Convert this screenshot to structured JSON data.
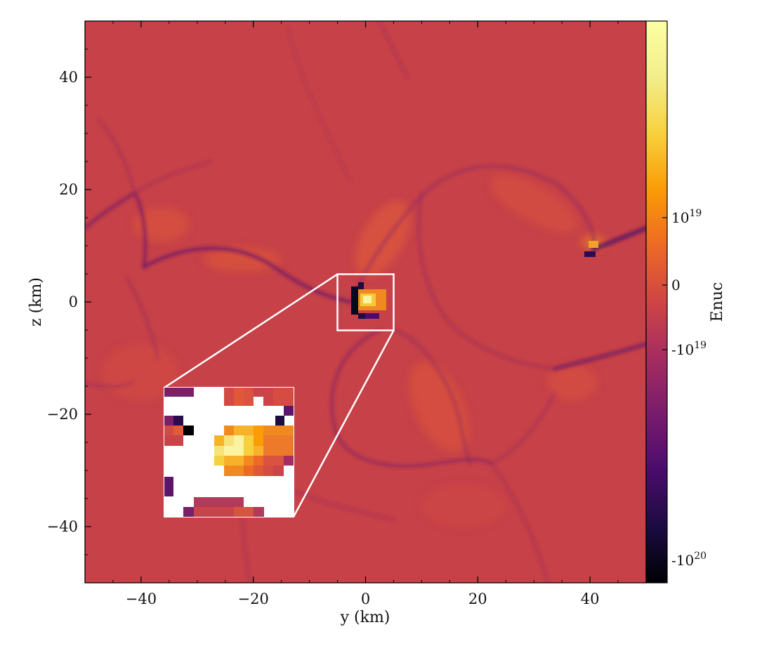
{
  "chart_data": {
    "type": "heatmap",
    "title": "",
    "xlabel": "y  (km)",
    "ylabel": "z  (km)",
    "xlim": [
      -50,
      50
    ],
    "ylim": [
      -50,
      50
    ],
    "x_ticks": [
      -40,
      -20,
      0,
      20,
      40
    ],
    "y_ticks": [
      -40,
      -20,
      0,
      20,
      40
    ],
    "x_tick_labels": [
      "−40",
      "−20",
      "0",
      "20",
      "40"
    ],
    "y_tick_labels": [
      "−40",
      "−20",
      "0",
      "20",
      "40"
    ],
    "grid": false,
    "colorbar": {
      "label": "Enuc",
      "scale": "symlog",
      "colormap": "inferno",
      "tick_labels": [
        "10",
        "0",
        "-10",
        "-10"
      ],
      "tick_exponents": [
        "19",
        "",
        "19",
        "20"
      ],
      "tick_fractions": [
        0.65,
        0.53,
        0.415,
        0.04
      ]
    },
    "inset": {
      "source_region_y": [
        -5,
        5
      ],
      "source_region_z": [
        -5,
        5
      ],
      "placement": "lower-left"
    },
    "background_level": 0.53,
    "hotspot": {
      "y": 1,
      "z": 0,
      "level": 0.97
    },
    "cold_spot": {
      "y": -2,
      "z": 0,
      "level": 0.03
    }
  }
}
